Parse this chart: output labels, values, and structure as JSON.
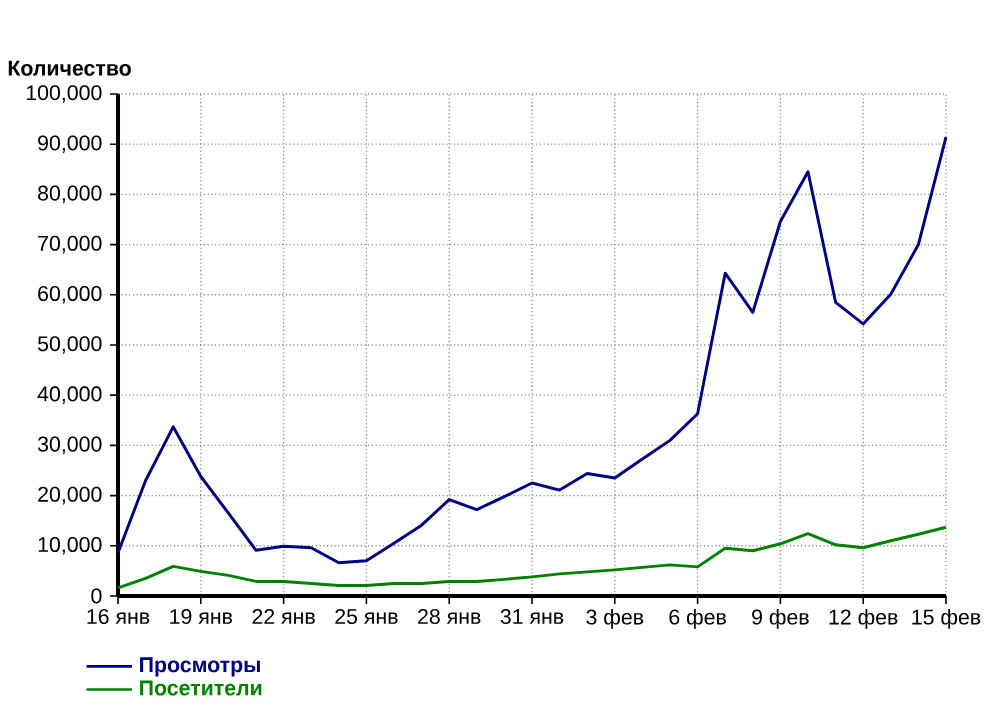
{
  "chart_data": {
    "type": "line",
    "ylabel": "Количество",
    "categories": [
      "16 янв",
      null,
      null,
      "19 янв",
      null,
      null,
      "22 янв",
      null,
      null,
      "25 янв",
      null,
      null,
      "28 янв",
      null,
      null,
      "31 янв",
      null,
      null,
      "3 фев",
      null,
      null,
      "6 фев",
      null,
      null,
      "9 фев",
      null,
      null,
      "12 фев",
      null,
      null,
      "15 фев"
    ],
    "series": [
      {
        "name": "Просмотры",
        "color": "#000080",
        "values": [
          8600,
          23000,
          33700,
          23800,
          16500,
          9100,
          9900,
          9600,
          6600,
          7000,
          10500,
          14100,
          19200,
          17200,
          19800,
          22500,
          21100,
          24400,
          23500,
          27300,
          31000,
          36300,
          64300,
          56500,
          74600,
          84500,
          58500,
          54200,
          60100,
          70000,
          91400
        ]
      },
      {
        "name": "Посетители",
        "color": "#008000",
        "values": [
          1600,
          3500,
          5900,
          4900,
          4100,
          2900,
          2900,
          2500,
          2100,
          2100,
          2500,
          2500,
          2900,
          2900,
          3300,
          3800,
          4400,
          4800,
          5200,
          5700,
          6200,
          5800,
          9500,
          9000,
          10400,
          12400,
          10200,
          9600,
          11000,
          12300,
          13700
        ]
      }
    ],
    "ylim": [
      0,
      100000
    ],
    "yticks": [
      {
        "value": 0,
        "label": "0"
      },
      {
        "value": 10000,
        "label": "10,000"
      },
      {
        "value": 20000,
        "label": "20,000"
      },
      {
        "value": 30000,
        "label": "30,000"
      },
      {
        "value": 40000,
        "label": "40,000"
      },
      {
        "value": 50000,
        "label": "50,000"
      },
      {
        "value": 60000,
        "label": "60,000"
      },
      {
        "value": 70000,
        "label": "70,000"
      },
      {
        "value": 80000,
        "label": "80,000"
      },
      {
        "value": 90000,
        "label": "90,000"
      },
      {
        "value": 100000,
        "label": "100,000"
      }
    ],
    "grid": true,
    "legend": "bottom left"
  }
}
